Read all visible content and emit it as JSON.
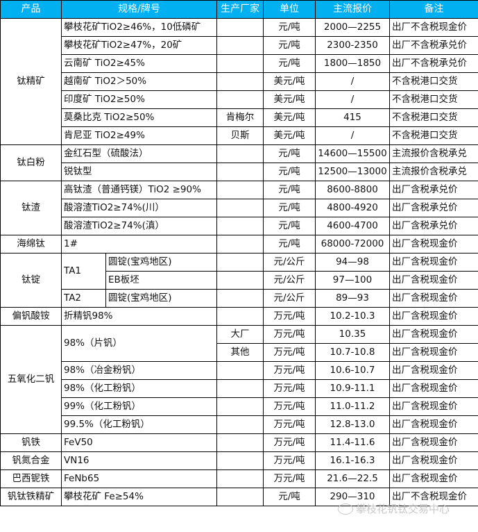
{
  "header": {
    "product": "产品",
    "spec": "规格/牌号",
    "maker": "生产厂家",
    "unit": "单位",
    "price": "主流报价",
    "note": "备注"
  },
  "header_color": "#00B0F0",
  "groups": [
    {
      "product": "钛精矿",
      "items": [
        {
          "spec": "攀枝花矿TiO2≥46%，10低磷矿",
          "maker": "",
          "unit": "元/吨",
          "price": "2000—2255",
          "note": "出厂不含税现金价"
        },
        {
          "spec": "攀枝花矿TiO2≥47%，20矿",
          "maker": "",
          "unit": "元/吨",
          "price": "2300-2350",
          "note": "出厂不含税承兑价"
        },
        {
          "spec": "云南矿 TiO2≥45%",
          "maker": "",
          "unit": "元/吨",
          "price": "1800—1850",
          "note": "出厂不含税承兑价"
        },
        {
          "spec": "越南矿 TiO2＞50%",
          "maker": "",
          "unit": "美元/吨",
          "price": "/",
          "note": "不含税港口交货"
        },
        {
          "spec": "印度矿 TiO2≥50%",
          "maker": "",
          "unit": "美元/吨",
          "price": "/",
          "note": "不含税港口交货"
        },
        {
          "spec": "莫桑比克 TiO2≥50%",
          "maker": "肯梅尔",
          "unit": "美元/吨",
          "price": "415",
          "note": "不含税港口交货"
        },
        {
          "spec": "肯尼亚 TiO2≥49%",
          "maker": "贝斯",
          "unit": "美元/吨",
          "price": "/",
          "note": "不含税港口交货"
        }
      ]
    },
    {
      "product": "钛白粉",
      "items": [
        {
          "spec": "金红石型（硫酸法）",
          "maker": "",
          "unit": "元/吨",
          "price": "14600—15500",
          "note": "主流报价含税承兑"
        },
        {
          "spec": "锐钛型",
          "maker": "",
          "unit": "元/吨",
          "price": "12500—13000",
          "note": "主流报价含税承兑"
        }
      ]
    },
    {
      "product": "钛渣",
      "items": [
        {
          "spec": "高钛渣（普通钙镁）TiO2 ≥90%",
          "maker": "",
          "unit": "元/吨",
          "price": "8600-8800",
          "note": "出厂含税承兑价"
        },
        {
          "spec": "酸溶渣TiO2≥74%(川）",
          "maker": "",
          "unit": "元/吨",
          "price": "4800-4920",
          "note": "出厂含税承兑价"
        },
        {
          "spec": "酸溶渣TiO2≥74%(滇）",
          "maker": "",
          "unit": "元/吨",
          "price": "4600-4700",
          "note": "出厂含税承兑价"
        }
      ]
    },
    {
      "product": "海绵钛",
      "items": [
        {
          "spec": "1#",
          "maker": "",
          "unit": "元/吨",
          "price": "68000-72000",
          "note": "出厂含税现金价"
        }
      ]
    },
    {
      "product": "钛锭",
      "grades": [
        {
          "grade": "TA1",
          "subs": [
            {
              "spec": "圆锭(宝鸡地区)",
              "maker": "",
              "unit": "元/公斤",
              "price": "94—98",
              "note": "出厂含税现金价"
            },
            {
              "spec": "EB板坯",
              "maker": "",
              "unit": "元/公斤",
              "price": "97—100",
              "note": "出厂含税现金价"
            }
          ]
        },
        {
          "grade": "TA2",
          "subs": [
            {
              "spec": "圆锭(宝鸡地区)",
              "maker": "",
              "unit": "元/公斤",
              "price": "89—93",
              "note": "出厂含税现金价"
            }
          ]
        }
      ]
    },
    {
      "product": "偏钒酸铵",
      "items": [
        {
          "spec": "折精钒98%",
          "maker": "",
          "unit": "万元/吨",
          "price": "10.2-10.3",
          "note": "出厂含税现金价"
        }
      ]
    },
    {
      "product": "五氧化二钒",
      "items": [
        {
          "spec": "98%（片钒）",
          "variants": [
            {
              "maker": "大厂",
              "unit": "万元/吨",
              "price": "10.35",
              "note": "出厂含税现金价"
            },
            {
              "maker": "其他",
              "unit": "万元/吨",
              "price": "10.7-10.8",
              "note": "出厂含税现金价"
            }
          ]
        },
        {
          "spec": "98%（冶金粉钒）",
          "maker": "",
          "unit": "万元/吨",
          "price": "10.6-10.7",
          "note": "出厂含税现金价"
        },
        {
          "spec": "98%（化工粉钒）",
          "maker": "",
          "unit": "万元/吨",
          "price": "10.9-11.1",
          "note": "出厂含税现金价"
        },
        {
          "spec": "99%（化工粉钒）",
          "maker": "",
          "unit": "万元/吨",
          "price": "11.0-11.2",
          "note": "出厂含税现金价"
        },
        {
          "spec": "99.5%（化工粉钒）",
          "maker": "",
          "unit": "万元/吨",
          "price": "12.8-13.0",
          "note": "出厂含税现金价"
        }
      ]
    },
    {
      "product": "钒铁",
      "items": [
        {
          "spec": "FeV50",
          "maker": "",
          "unit": "万元/吨",
          "price": "11.4-11.6",
          "note": "出厂含税现金价"
        }
      ]
    },
    {
      "product": "钒氮合金",
      "items": [
        {
          "spec": "VN16",
          "maker": "",
          "unit": "万元/吨",
          "price": "16.1-16.3",
          "note": "出厂含税现金价"
        }
      ]
    },
    {
      "product": "巴西铌铁",
      "items": [
        {
          "spec": "FeNb65",
          "maker": "",
          "unit": "万元/吨",
          "price": "21.6—22.5",
          "note": "出厂含税现金价"
        }
      ]
    },
    {
      "product": "钒钛铁精矿",
      "items": [
        {
          "spec": "攀枝花矿 Fe≥54%",
          "maker": "",
          "unit": "元/吨",
          "price": "290—310",
          "note": "出厂不含税现金价"
        }
      ]
    }
  ],
  "watermark": {
    "text": "攀枝花钒钛交易中心",
    "icon": "wechat-icon"
  }
}
